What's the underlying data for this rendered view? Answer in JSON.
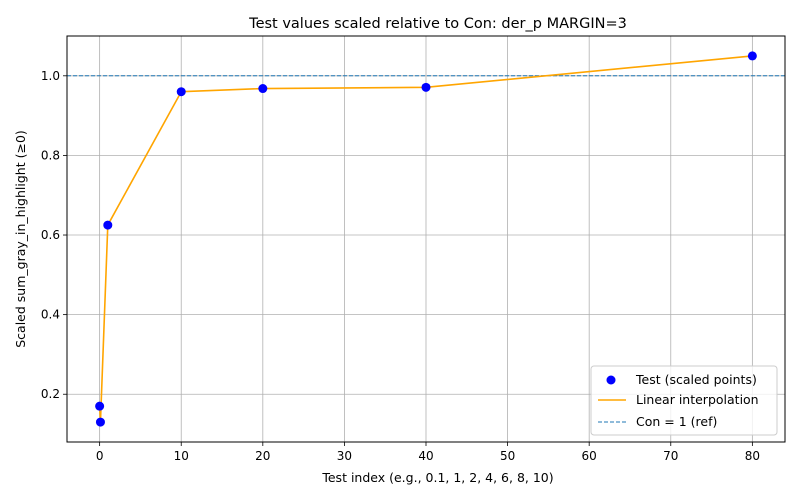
{
  "chart_data": {
    "type": "scatter",
    "title": "Test values scaled relative to Con: der_p MARGIN=3",
    "xlabel": "Test index (e.g., 0.1, 1, 2, 4, 6, 8, 10)",
    "ylabel": "Scaled sum_gray_in_highlight (≥0)",
    "xlim": [
      -4,
      84
    ],
    "ylim": [
      0.08,
      1.1
    ],
    "xticks": [
      0,
      10,
      20,
      30,
      40,
      50,
      60,
      70,
      80
    ],
    "xtick_labels": [
      "0",
      "10",
      "20",
      "30",
      "40",
      "50",
      "60",
      "70",
      "80"
    ],
    "yticks": [
      0.2,
      0.4,
      0.6,
      0.8,
      1.0
    ],
    "ytick_labels": [
      "0.2",
      "0.4",
      "0.6",
      "0.8",
      "1.0"
    ],
    "grid": true,
    "legend_position": "bottom-right",
    "series": [
      {
        "name": "Test (scaled points)",
        "kind": "scatter",
        "color": "#0000ff",
        "x": [
          0,
          0.1,
          1,
          10,
          20,
          40,
          80
        ],
        "y": [
          0.17,
          0.13,
          0.625,
          0.96,
          0.968,
          0.971,
          1.05
        ]
      },
      {
        "name": "Linear interpolation",
        "kind": "line",
        "color": "#ffa500",
        "x": [
          0,
          0.1,
          1,
          10,
          20,
          40,
          80
        ],
        "y": [
          0.17,
          0.13,
          0.625,
          0.96,
          0.968,
          0.971,
          1.05
        ]
      },
      {
        "name": "Con = 1 (ref)",
        "kind": "hline",
        "color": "#1f77b4",
        "y": 1.0
      }
    ]
  }
}
